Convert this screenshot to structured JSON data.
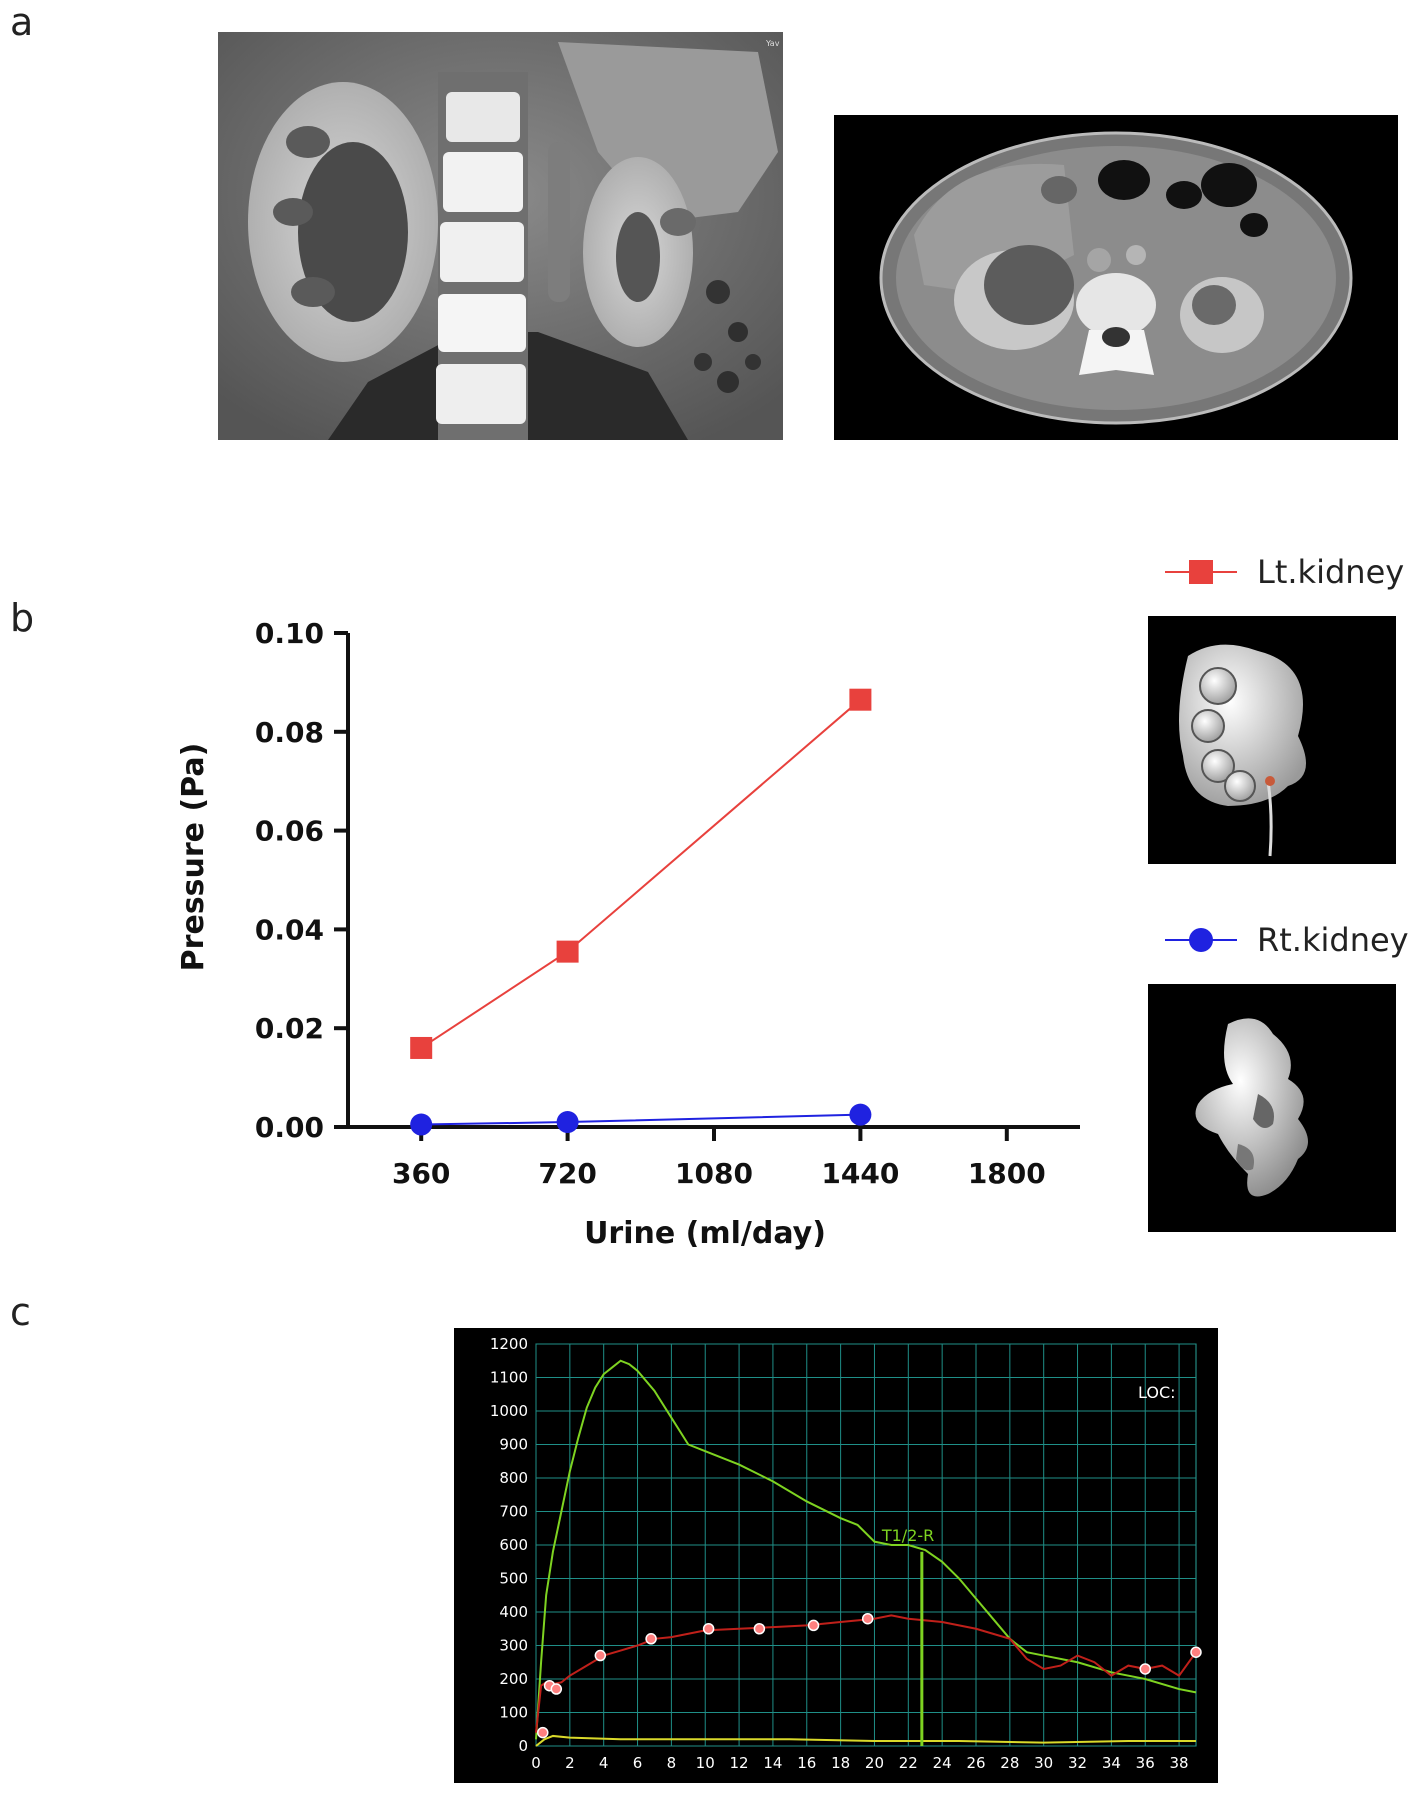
{
  "panels": {
    "a": "a",
    "b": "b",
    "c": "c"
  },
  "ct_coronal": {
    "corner_text": "Yav"
  },
  "legend": {
    "left_kidney": "Lt.kidney",
    "right_kidney": "Rt.kidney",
    "left_color": "#e8413d",
    "right_color": "#1f22e0"
  },
  "chart_data": [
    {
      "type": "line",
      "title": "",
      "xlabel": "Urine (ml/day)",
      "ylabel": "Pressure (Pa)",
      "x_ticks": [
        "360",
        "720",
        "1080",
        "1440",
        "1800"
      ],
      "y_ticks": [
        "0.00",
        "0.02",
        "0.04",
        "0.06",
        "0.08",
        "0.10"
      ],
      "xlim": [
        180,
        1980
      ],
      "ylim": [
        0,
        0.1
      ],
      "series": [
        {
          "name": "Lt.kidney",
          "color": "#e8413d",
          "marker": "square",
          "x": [
            360,
            720,
            1440
          ],
          "y": [
            0.016,
            0.0355,
            0.0865
          ]
        },
        {
          "name": "Rt.kidney",
          "color": "#1f22e0",
          "marker": "circle",
          "x": [
            360,
            720,
            1440
          ],
          "y": [
            0.0005,
            0.001,
            0.0025
          ]
        }
      ]
    },
    {
      "type": "line",
      "title": "",
      "xlabel": "",
      "ylabel": "",
      "x_ticks": [
        "0",
        "2",
        "4",
        "6",
        "8",
        "10",
        "12",
        "14",
        "16",
        "18",
        "20",
        "22",
        "24",
        "26",
        "28",
        "30",
        "32",
        "34",
        "36",
        "38"
      ],
      "y_ticks": [
        "0",
        "100",
        "200",
        "300",
        "400",
        "500",
        "600",
        "700",
        "800",
        "900",
        "1000",
        "1100",
        "1200"
      ],
      "xlim": [
        0,
        39
      ],
      "ylim": [
        0,
        1200
      ],
      "grid": true,
      "annotation": "T1/2-R",
      "annotation_x": 22.8,
      "corner_label": "LOC:",
      "series": [
        {
          "color": "#7ed321",
          "x": [
            0,
            0.3,
            0.6,
            1,
            1.5,
            2,
            2.5,
            3,
            3.5,
            4,
            4.5,
            5,
            5.5,
            6,
            7,
            8,
            9,
            10,
            12,
            14,
            16,
            18,
            19,
            20,
            21,
            22,
            23,
            24,
            25,
            26,
            27,
            28,
            29,
            30,
            32,
            34,
            36,
            38,
            39
          ],
          "y": [
            20,
            250,
            450,
            580,
            700,
            820,
            920,
            1010,
            1070,
            1110,
            1130,
            1150,
            1140,
            1120,
            1060,
            980,
            900,
            880,
            840,
            790,
            730,
            680,
            660,
            610,
            600,
            600,
            585,
            550,
            500,
            440,
            380,
            320,
            280,
            270,
            250,
            220,
            200,
            170,
            160
          ]
        },
        {
          "color": "#c0201a",
          "x": [
            0,
            0.3,
            0.6,
            1,
            1.5,
            2,
            3,
            4,
            5,
            6,
            7,
            8,
            10,
            12,
            14,
            16,
            18,
            20,
            21,
            22,
            24,
            26,
            28,
            29,
            30,
            31,
            32,
            33,
            34,
            35,
            36,
            37,
            38,
            39
          ],
          "y": [
            40,
            180,
            190,
            185,
            190,
            210,
            240,
            270,
            285,
            300,
            320,
            325,
            345,
            350,
            355,
            360,
            370,
            380,
            390,
            380,
            370,
            350,
            320,
            260,
            230,
            240,
            270,
            250,
            210,
            240,
            230,
            240,
            210,
            280
          ]
        },
        {
          "color": "#d9d92a",
          "x": [
            0,
            0.5,
            1,
            2,
            5,
            10,
            15,
            20,
            25,
            30,
            35,
            39
          ],
          "y": [
            0,
            20,
            30,
            25,
            20,
            20,
            20,
            15,
            15,
            10,
            15,
            15
          ]
        }
      ],
      "markers": {
        "color": "#ff8080",
        "x": [
          0.4,
          0.8,
          1.2,
          3.8,
          6.8,
          10.2,
          13.2,
          16.4,
          19.6,
          36,
          39
        ],
        "y": [
          40,
          180,
          170,
          270,
          320,
          350,
          350,
          360,
          380,
          230,
          280
        ]
      }
    }
  ]
}
